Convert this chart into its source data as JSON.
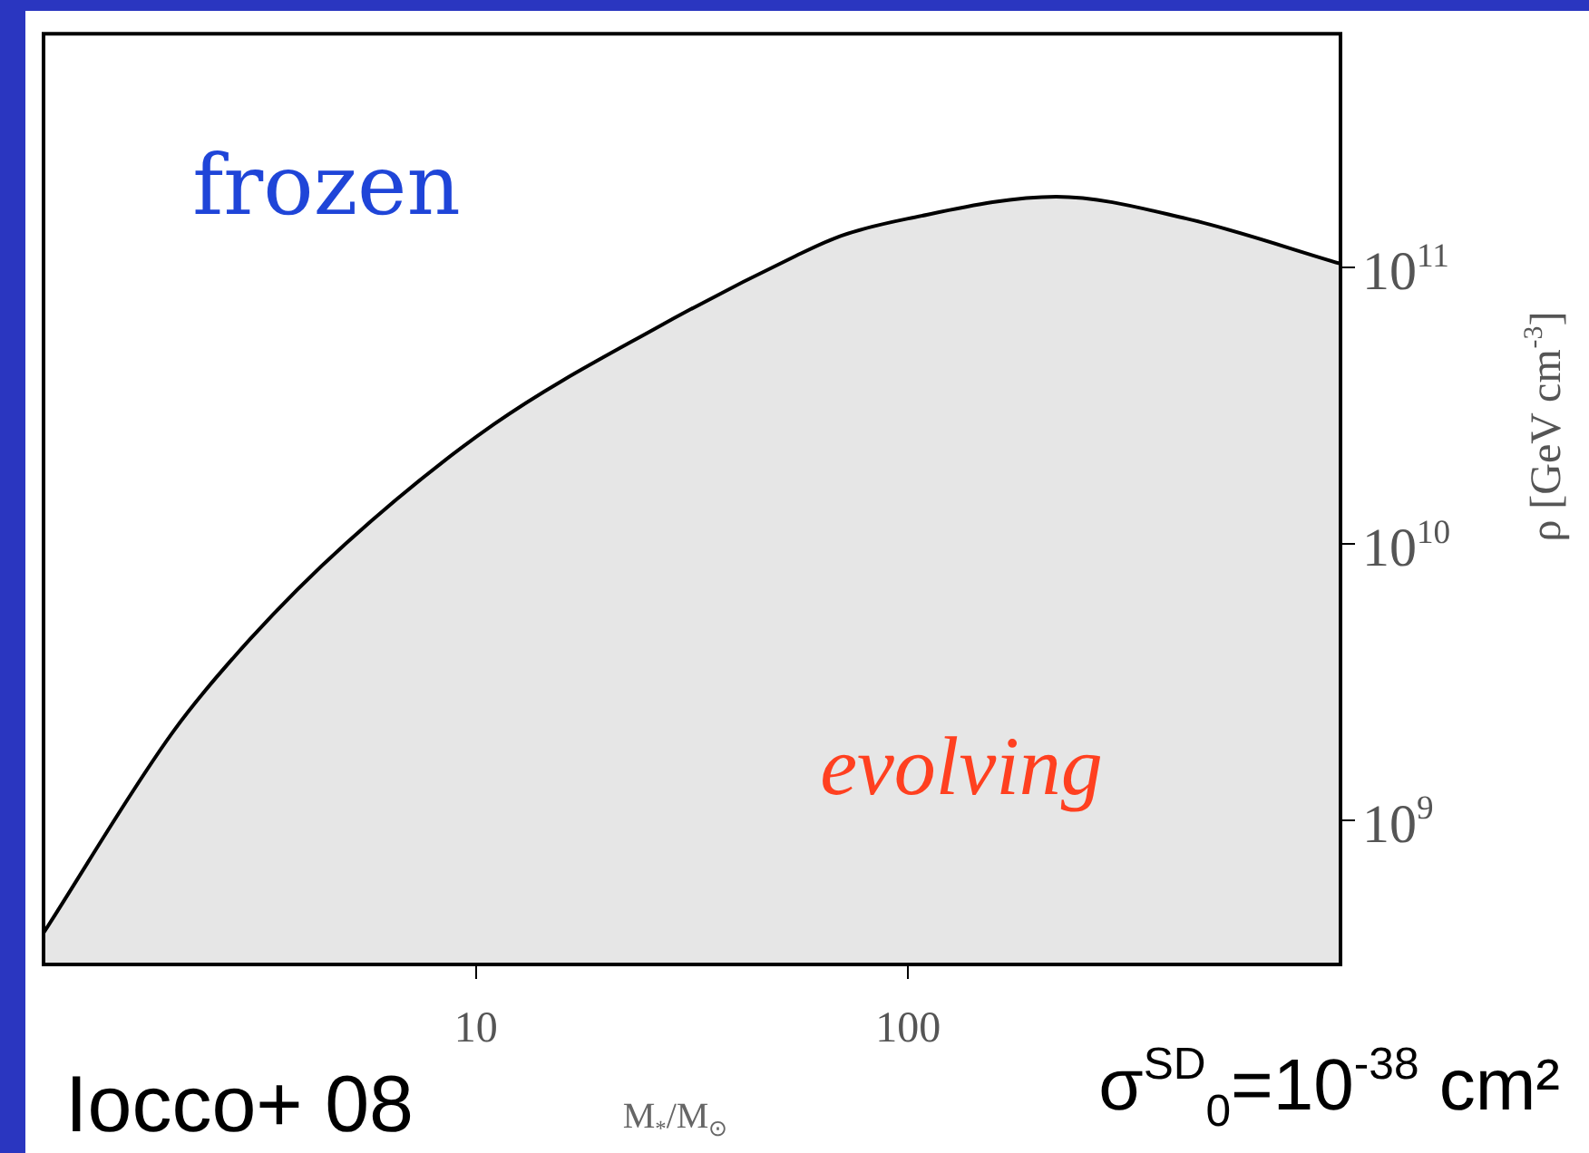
{
  "chart_data": {
    "type": "area",
    "xlabel": "M$_{*}$/M$_{⊙}$",
    "ylabel": "ρ [GeV cm$^{-3}$]",
    "log": "xy",
    "grid": false,
    "xlim": [
      1,
      1000
    ],
    "xticks": [
      10,
      100
    ],
    "ylim": [
      300000000.0,
      700000000000.0
    ],
    "yticks": [
      {
        "value": 1000000000.0,
        "label": "10$^{9}$"
      },
      {
        "value": 10000000000.0,
        "label": "10$^{10}$"
      },
      {
        "value": 100000000000.0,
        "label": "10$^{11}$"
      }
    ],
    "x": [
      1,
      2,
      3,
      5,
      11,
      26,
      55,
      70,
      100,
      220,
      440,
      1000
    ],
    "series": [
      {
        "color": "#000000",
        "values": [
          390000000.0,
          2100000000.0,
          4500000000.0,
          10000000000.0,
          27000000000.0,
          60000000000.0,
          110000000000.0,
          130000000000.0,
          150000000000.0,
          180000000000.0,
          150000000000.0,
          103000000000.0
        ]
      }
    ],
    "annotations": [
      "frozen",
      "evolving",
      "Iocco+ 08",
      "σ$^{SD}$$_{0}$=10$^{-38}$ cm²"
    ]
  }
}
